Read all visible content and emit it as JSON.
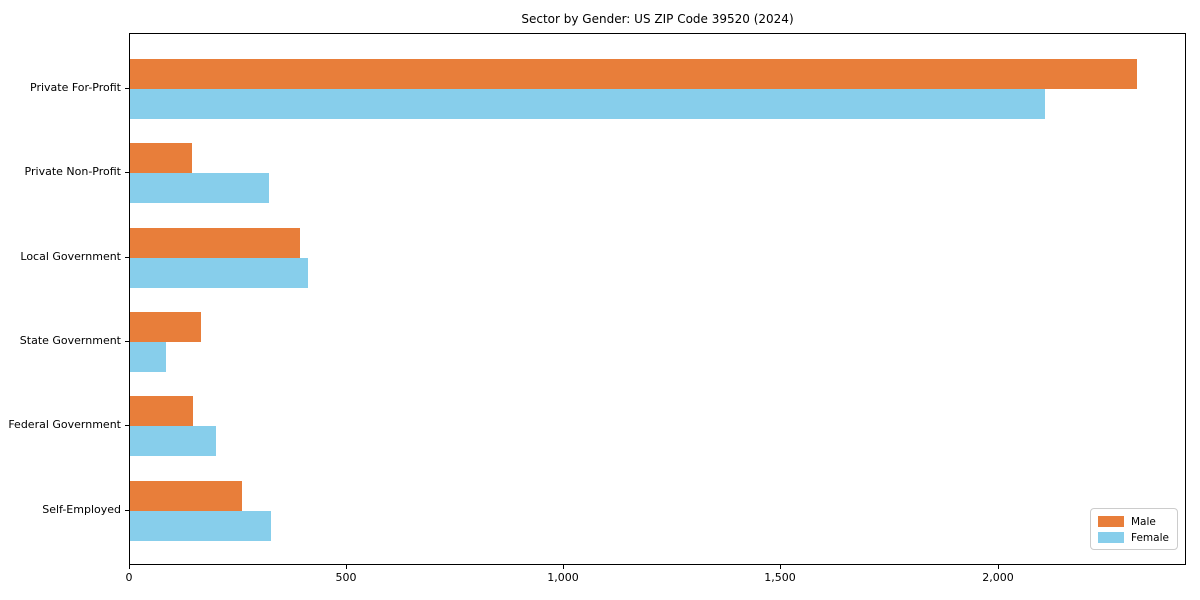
{
  "title": "Sector by Gender: US ZIP Code 39520 (2024)",
  "chart_data": {
    "type": "bar",
    "orientation": "horizontal",
    "title": "Sector by Gender: US ZIP Code 39520 (2024)",
    "categories": [
      "Private For-Profit",
      "Private Non-Profit",
      "Local Government",
      "State Government",
      "Federal Government",
      "Self-Employed"
    ],
    "series": [
      {
        "name": "Male",
        "color": "#e87e3a",
        "values": [
          2318,
          143,
          391,
          164,
          146,
          258
        ]
      },
      {
        "name": "Female",
        "color": "#87ceeb",
        "values": [
          2106,
          320,
          409,
          83,
          198,
          325
        ]
      }
    ],
    "xticks": [
      0,
      500,
      1000,
      1500,
      2000
    ],
    "xtick_labels": [
      "0",
      "500",
      "1,000",
      "1,500",
      "2,000"
    ],
    "xlim": [
      0,
      2434
    ],
    "xlabel": "",
    "ylabel": "",
    "grid": false,
    "legend_position": "lower right"
  }
}
